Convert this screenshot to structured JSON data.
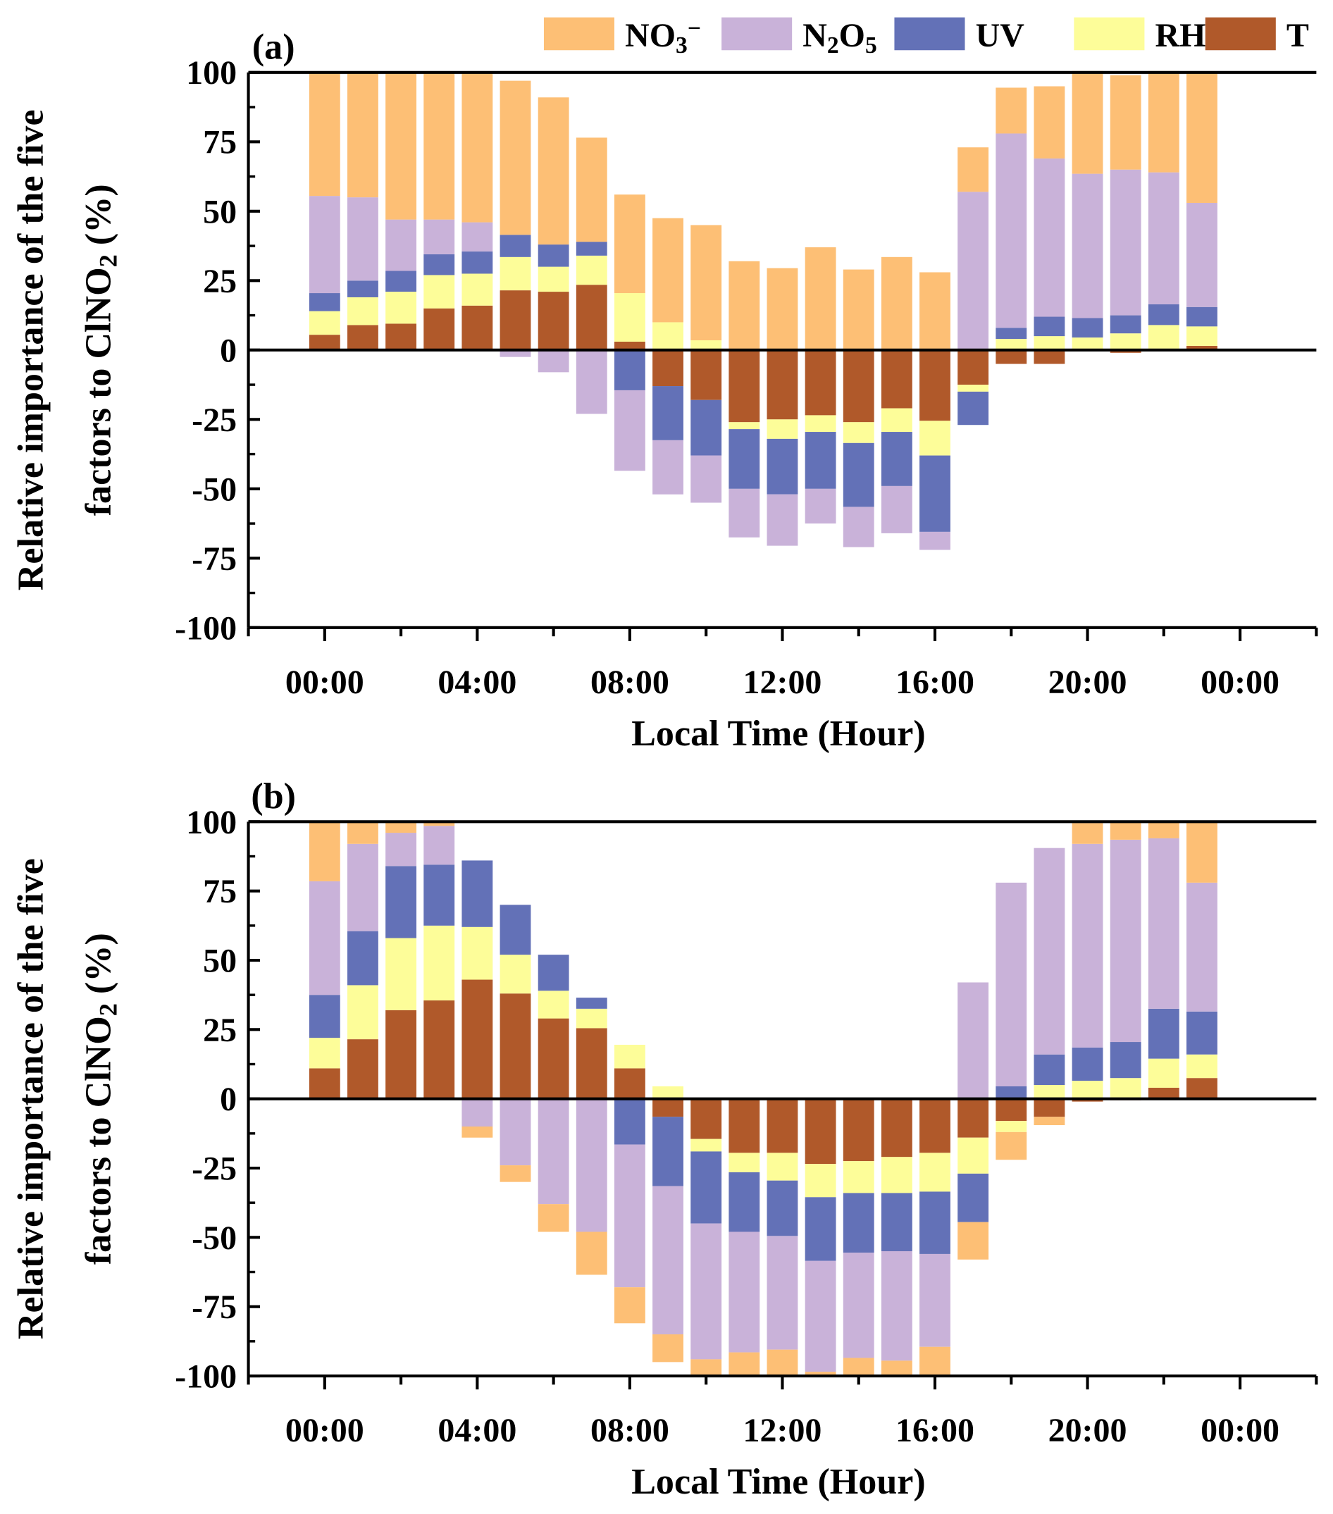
{
  "chart_data": [
    {
      "type": "bar",
      "stacked": true,
      "panel_label": "(a)",
      "xlabel": "Local Time (Hour)",
      "ylabel_lines": [
        "Relative importance of the five",
        "factors to ClNO2 (%)"
      ],
      "ylim": [
        -100,
        100
      ],
      "xlim_hours": [
        -2,
        26
      ],
      "yticks": [
        "100",
        "75",
        "50",
        "25",
        "0",
        "-25",
        "-50",
        "-75",
        "-100"
      ],
      "xticks": [
        "00:00",
        "04:00",
        "08:00",
        "12:00",
        "16:00",
        "20:00",
        "00:00"
      ],
      "hours": [
        0,
        1,
        2,
        3,
        4,
        5,
        6,
        7,
        8,
        9,
        10,
        11,
        12,
        13,
        14,
        15,
        16,
        17,
        18,
        19,
        20,
        21,
        22,
        23
      ],
      "series": [
        {
          "name": "T",
          "values": [
            5.5,
            9,
            9.5,
            15,
            16,
            21.5,
            21,
            23.5,
            3,
            -13,
            -18,
            -26,
            -25,
            -23.5,
            -26,
            -21,
            -25.5,
            -12.5,
            -5,
            -5,
            0.5,
            -1,
            0.5,
            1.5
          ]
        },
        {
          "name": "RH",
          "values": [
            8.5,
            10,
            11.5,
            12,
            11.5,
            12,
            9,
            10.5,
            17.5,
            10,
            3.5,
            -2.5,
            -7,
            -6,
            -7.5,
            -8.5,
            -12.5,
            -2.5,
            4,
            5,
            4,
            6,
            8.5,
            7
          ]
        },
        {
          "name": "UV",
          "values": [
            6.5,
            6,
            7.5,
            7.5,
            8,
            8,
            8,
            5,
            -14.5,
            -19.5,
            -20,
            -21.5,
            -20,
            -20.5,
            -23,
            -19.5,
            -27.5,
            -12,
            4,
            7,
            7,
            6.5,
            7.5,
            7
          ]
        },
        {
          "name": "N2O5",
          "values": [
            35,
            30,
            18.5,
            12.5,
            10.5,
            -2.5,
            -8,
            -23,
            -29,
            -19.5,
            -17,
            -17.5,
            -18.5,
            -12.5,
            -14.5,
            -17,
            -6.5,
            57,
            70,
            57,
            52,
            52.5,
            47.5,
            37.5
          ]
        },
        {
          "name": "NO3−",
          "values": [
            44.5,
            45,
            53,
            53,
            54,
            55.5,
            53,
            37.5,
            35.5,
            37.5,
            41.5,
            32,
            29.5,
            37,
            29,
            33.5,
            28,
            16,
            16.5,
            26,
            37,
            34,
            36.5,
            47
          ]
        }
      ]
    },
    {
      "type": "bar",
      "stacked": true,
      "panel_label": "(b)",
      "xlabel": "Local Time (Hour)",
      "ylabel_lines": [
        "Relative importance of the five",
        "factors to ClNO2 (%)"
      ],
      "ylim": [
        -100,
        100
      ],
      "xlim_hours": [
        -2,
        26
      ],
      "yticks": [
        "100",
        "75",
        "50",
        "25",
        "0",
        "-25",
        "-50",
        "-75",
        "-100"
      ],
      "xticks": [
        "00:00",
        "04:00",
        "08:00",
        "12:00",
        "16:00",
        "20:00",
        "00:00"
      ],
      "hours": [
        0,
        1,
        2,
        3,
        4,
        5,
        6,
        7,
        8,
        9,
        10,
        11,
        12,
        13,
        14,
        15,
        16,
        17,
        18,
        19,
        20,
        21,
        22,
        23
      ],
      "series": [
        {
          "name": "T",
          "values": [
            11,
            21.5,
            32,
            35.5,
            43,
            38,
            29,
            25.5,
            11,
            -6.5,
            -14.5,
            -19.5,
            -19.5,
            -23.5,
            -22.5,
            -21,
            -19.5,
            -14,
            -8,
            -6.5,
            -1,
            -0.5,
            4,
            7.5
          ]
        },
        {
          "name": "RH",
          "values": [
            11,
            19.5,
            26,
            27,
            19,
            14,
            10,
            7,
            8.5,
            4.5,
            -4.5,
            -7,
            -10,
            -12,
            -11.5,
            -13,
            -14,
            -13,
            -4,
            5,
            6.5,
            7.5,
            10.5,
            8.5
          ]
        },
        {
          "name": "UV",
          "values": [
            15.5,
            19.5,
            26,
            22,
            24,
            18,
            13,
            4,
            -16.5,
            -25,
            -26,
            -21.5,
            -20,
            -23,
            -21.5,
            -21,
            -22.5,
            -17.5,
            4.5,
            11,
            12,
            13,
            18,
            15.5
          ]
        },
        {
          "name": "N2O5",
          "values": [
            41,
            31.5,
            12,
            14,
            -10,
            -24,
            -38,
            -48,
            -51.5,
            -53.5,
            -49,
            -43.5,
            -41,
            -40,
            -38,
            -39.5,
            -33.5,
            42,
            73.5,
            74.5,
            73.5,
            73,
            61.5,
            46.5
          ]
        },
        {
          "name": "NO3−",
          "values": [
            21.5,
            8,
            4,
            1.5,
            -4,
            -6,
            -10,
            -15.5,
            -13,
            -10,
            -6,
            -8.5,
            -9.5,
            -1.5,
            -6.5,
            -5.5,
            -10.5,
            -13.5,
            -10,
            -3,
            7.5,
            6.5,
            6,
            22
          ]
        }
      ]
    }
  ],
  "legend": {
    "placement": "top-right",
    "items": [
      {
        "label": "NO3−",
        "color": "#FDBF75"
      },
      {
        "label": "N2O5",
        "color": "#C9B2D9"
      },
      {
        "label": "UV",
        "color": "#6371B7"
      },
      {
        "label": "RH",
        "color": "#FDFD99"
      },
      {
        "label": "T",
        "color": "#B0592A"
      }
    ]
  },
  "colors": {
    "T": "#B0592A",
    "RH": "#FDFD99",
    "UV": "#6371B7",
    "N2O5": "#C9B2D9",
    "NO3−": "#FDBF75"
  }
}
